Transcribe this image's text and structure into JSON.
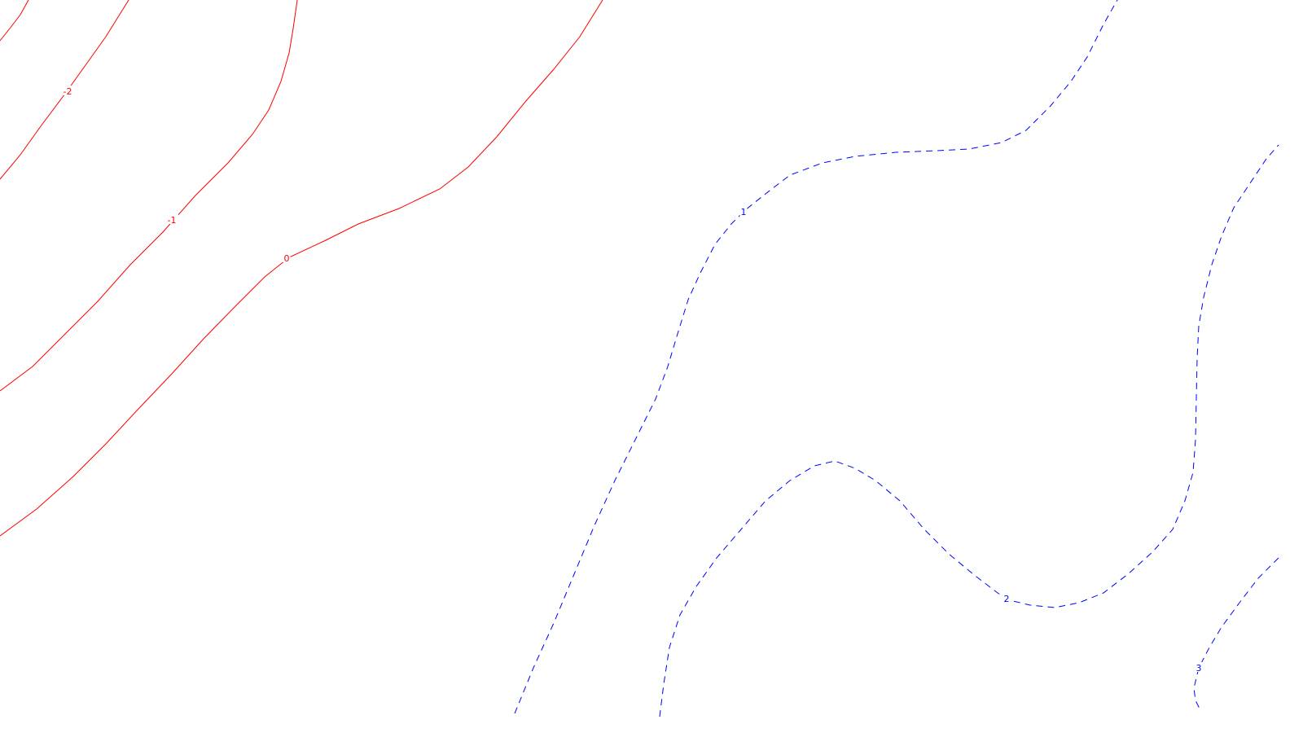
{
  "chart_data": {
    "type": "contour",
    "title": "",
    "xlabel": "",
    "ylabel": "",
    "grid": false,
    "colors": {
      "negative_and_zero": "#ff0000",
      "positive": "#0000ff",
      "background": "#ffffff"
    },
    "line_styles": {
      "negative_and_zero": "solid",
      "positive": "dashed"
    },
    "levels": [
      {
        "value": -2,
        "label": "-2",
        "color": "#ff0000",
        "style": "solid"
      },
      {
        "value": -1,
        "label": "-1",
        "color": "#ff0000",
        "style": "solid"
      },
      {
        "value": 0,
        "label": "0",
        "color": "#ff0000",
        "style": "solid"
      },
      {
        "value": 1,
        "label": "1",
        "color": "#0000ff",
        "style": "dashed"
      },
      {
        "value": 2,
        "label": "2",
        "color": "#0000ff",
        "style": "dashed"
      },
      {
        "value": 3,
        "label": "3",
        "color": "#0000ff",
        "style": "dashed"
      }
    ]
  }
}
